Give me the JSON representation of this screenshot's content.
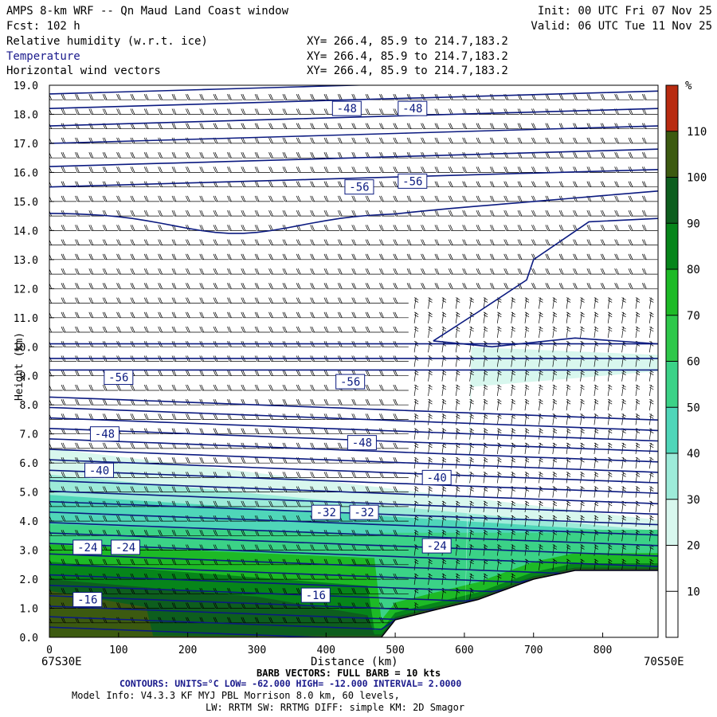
{
  "header": {
    "title": "AMPS 8-km WRF -- Qn Maud Land Coast window",
    "fcst": "Fcst: 102 h",
    "init": "Init: 00 UTC Fri 07 Nov 25",
    "valid": "Valid: 06 UTC Tue 11 Nov 25",
    "fields": [
      {
        "name": "Relative humidity (w.r.t. ice)",
        "xy": "XY= 266.4, 85.9 to 214.7,183.2"
      },
      {
        "name": "Temperature",
        "xy": "XY= 266.4, 85.9 to 214.7,183.2"
      },
      {
        "name": "Horizontal wind vectors",
        "xy": "XY= 266.4, 85.9 to 214.7,183.2"
      }
    ]
  },
  "footer": {
    "left_location": "67S30E",
    "right_location": "70S50E",
    "barb": "BARB VECTORS: FULL BARB = 10 kts",
    "contours": "CONTOURS: UNITS=°C LOW= -62.000 HIGH= -12.000 INTERVAL= 2.0000",
    "model_info_1": "Model Info: V4.3.3 KF MYJ PBL Morrison 8.0 km, 60 levels,",
    "model_info_2": "LW: RRTM SW: RRTMG DIFF: simple KM: 2D Smagor"
  },
  "colors": {
    "contour": "#0b1a80",
    "colorbar": [
      "#ffffff",
      "#ffffff",
      "#ffffff",
      "#ffffff",
      "#d8f7ee",
      "#9debd9",
      "#4fd6b9",
      "#3bd287",
      "#2ec84a",
      "#1dba26",
      "#10a218",
      "#06851a",
      "#0d5e1e",
      "#3c5a10",
      "#b82b10"
    ]
  },
  "chart_data": {
    "type": "cross-section",
    "title": "Relative humidity (w.r.t. ice), Temperature, Horizontal wind vectors",
    "xlabel": "Distance (km)",
    "ylabel": "Height (km)",
    "xlim": [
      0,
      880
    ],
    "ylim": [
      0,
      19
    ],
    "x_ticks": [
      0,
      100,
      200,
      300,
      400,
      500,
      600,
      700,
      800
    ],
    "y_ticks": [
      "0.0",
      "1.0",
      "2.0",
      "3.0",
      "4.0",
      "5.0",
      "6.0",
      "7.0",
      "8.0",
      "9.0",
      "10.0",
      "11.0",
      "12.0",
      "13.0",
      "14.0",
      "15.0",
      "16.0",
      "17.0",
      "18.0",
      "19.0"
    ],
    "colorbar": {
      "unit": "%",
      "levels": [
        10,
        20,
        30,
        40,
        50,
        60,
        70,
        80,
        90,
        100,
        110
      ],
      "range": [
        0,
        120
      ]
    },
    "contour_labels": [
      {
        "value": "-48",
        "x": 430,
        "y": 18.2
      },
      {
        "value": "-48",
        "x": 525,
        "y": 18.2
      },
      {
        "value": "-56",
        "x": 448,
        "y": 15.5
      },
      {
        "value": "-56",
        "x": 525,
        "y": 15.7
      },
      {
        "value": "-56",
        "x": 100,
        "y": 8.95
      },
      {
        "value": "-56",
        "x": 435,
        "y": 8.8
      },
      {
        "value": "-48",
        "x": 80,
        "y": 7.0
      },
      {
        "value": "-48",
        "x": 452,
        "y": 6.7
      },
      {
        "value": "-40",
        "x": 72,
        "y": 5.75
      },
      {
        "value": "-40",
        "x": 560,
        "y": 5.5
      },
      {
        "value": "-32",
        "x": 400,
        "y": 4.3
      },
      {
        "value": "-32",
        "x": 455,
        "y": 4.3
      },
      {
        "value": "-24",
        "x": 55,
        "y": 3.1
      },
      {
        "value": "-24",
        "x": 110,
        "y": 3.1
      },
      {
        "value": "-24",
        "x": 560,
        "y": 3.15
      },
      {
        "value": "-16",
        "x": 55,
        "y": 1.3
      },
      {
        "value": "-16",
        "x": 385,
        "y": 1.45
      }
    ],
    "terrain_height_km": [
      {
        "x": 0,
        "h": 0
      },
      {
        "x": 480,
        "h": 0
      },
      {
        "x": 500,
        "h": 0.6
      },
      {
        "x": 550,
        "h": 0.9
      },
      {
        "x": 620,
        "h": 1.3
      },
      {
        "x": 700,
        "h": 2.0
      },
      {
        "x": 760,
        "h": 2.3
      },
      {
        "x": 880,
        "h": 2.3
      }
    ]
  }
}
